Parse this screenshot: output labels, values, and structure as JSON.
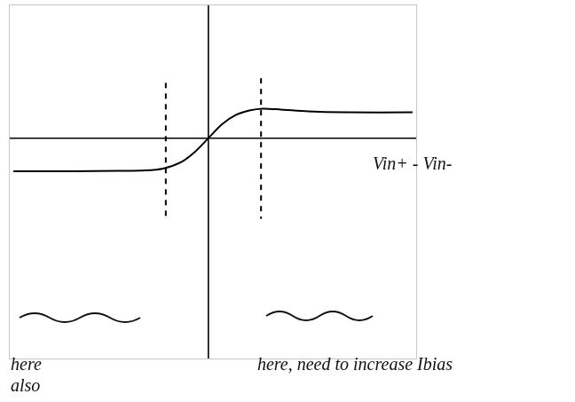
{
  "chart_data": {
    "type": "line",
    "x_label": "Vin+ - Vin-",
    "annotations": [
      "here also",
      "here, need to increase Ibias"
    ],
    "xlim": [
      -4.4,
      4.6
    ],
    "ylim": [
      -4.8,
      2.9
    ],
    "xticks": [
      0
    ],
    "yticks": [
      0
    ],
    "grid": true,
    "tick_labels": false,
    "color": "#000000",
    "series": [
      {
        "x": [
          -4.3,
          -3,
          -2,
          -1.4,
          -1,
          -0.6,
          -0.3,
          0,
          0.3,
          0.6,
          0.9,
          1.2,
          1.6,
          2.2,
          3,
          4.5
        ],
        "values": [
          -0.72,
          -0.72,
          -0.71,
          -0.7,
          -0.66,
          -0.52,
          -0.3,
          0,
          0.3,
          0.5,
          0.6,
          0.64,
          0.62,
          0.58,
          0.56,
          0.56
        ],
        "color": "#000000",
        "line_style": "solid"
      },
      {
        "x": [
          -0.94,
          -0.94
        ],
        "values": [
          1.2,
          -1.8
        ],
        "color": "#000000",
        "line_style": "dashed"
      },
      {
        "x": [
          1.16,
          1.16
        ],
        "values": [
          1.3,
          -1.75
        ],
        "color": "#000000",
        "line_style": "dashed"
      }
    ]
  }
}
